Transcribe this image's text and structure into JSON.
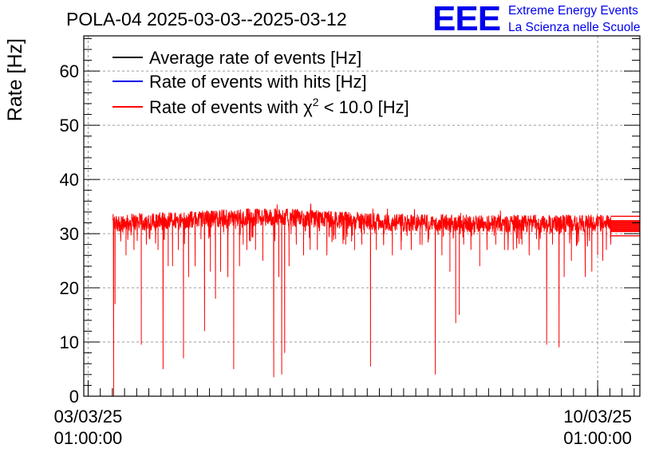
{
  "chart_data": {
    "type": "line",
    "title": "POLA-04 2025-03-03--2025-03-12",
    "ylabel": "Rate [Hz]",
    "xlabel": "",
    "ylim": [
      0,
      66.5
    ],
    "y_ticks": [
      0,
      10,
      20,
      30,
      40,
      50,
      60
    ],
    "x_range_days": [
      -0.06,
      7.58
    ],
    "x_ticks": [
      {
        "day": 0,
        "date": "03/03/25",
        "time": "01:00:00"
      },
      {
        "day": 7,
        "date": "10/03/25",
        "time": "01:00:00"
      }
    ],
    "grid": true,
    "legend_position": "top-left",
    "series": [
      {
        "name": "Average rate of events [Hz]",
        "color": "#000000",
        "legend_label": "Average rate of events [Hz]"
      },
      {
        "name": "Rate of events with hits [Hz]",
        "color": "#0000ee",
        "legend_label": "Rate of events with hits [Hz]"
      },
      {
        "name": "Rate of events with chi2 < 10.0 [Hz]",
        "color": "#ff0000",
        "legend_prefix": "Rate of events with ",
        "legend_symbol": "χ",
        "legend_sup": "2",
        "legend_suffix": " < 10.0 [Hz]",
        "start_day": 0.34,
        "end_day": 7.58,
        "band_low": 30.0,
        "band_high": 33.5,
        "dips": [
          [
            0.35,
            0
          ],
          [
            0.37,
            17
          ],
          [
            0.52,
            26
          ],
          [
            0.63,
            27
          ],
          [
            0.73,
            9.5
          ],
          [
            0.8,
            28
          ],
          [
            0.96,
            27
          ],
          [
            1.03,
            5
          ],
          [
            1.1,
            24
          ],
          [
            1.16,
            24
          ],
          [
            1.24,
            27
          ],
          [
            1.31,
            7
          ],
          [
            1.38,
            22
          ],
          [
            1.47,
            24
          ],
          [
            1.55,
            29
          ],
          [
            1.6,
            12
          ],
          [
            1.68,
            23
          ],
          [
            1.75,
            18
          ],
          [
            1.82,
            23
          ],
          [
            1.92,
            22
          ],
          [
            2.0,
            5
          ],
          [
            2.08,
            24
          ],
          [
            2.13,
            28
          ],
          [
            2.18,
            27
          ],
          [
            2.3,
            27
          ],
          [
            2.4,
            25
          ],
          [
            2.55,
            3.5
          ],
          [
            2.62,
            22
          ],
          [
            2.66,
            4
          ],
          [
            2.7,
            8
          ],
          [
            2.76,
            24
          ],
          [
            2.86,
            28
          ],
          [
            2.96,
            26
          ],
          [
            3.05,
            27
          ],
          [
            3.15,
            27
          ],
          [
            3.28,
            26
          ],
          [
            3.4,
            29
          ],
          [
            3.54,
            28
          ],
          [
            3.66,
            27
          ],
          [
            3.76,
            28
          ],
          [
            3.88,
            5.5
          ],
          [
            3.96,
            27
          ],
          [
            4.06,
            28
          ],
          [
            4.18,
            26
          ],
          [
            4.3,
            27
          ],
          [
            4.44,
            27
          ],
          [
            4.56,
            28
          ],
          [
            4.68,
            29
          ],
          [
            4.77,
            4
          ],
          [
            4.86,
            26
          ],
          [
            4.97,
            23
          ],
          [
            5.05,
            13.5
          ],
          [
            5.1,
            15
          ],
          [
            5.16,
            28
          ],
          [
            5.26,
            27
          ],
          [
            5.38,
            24
          ],
          [
            5.48,
            27
          ],
          [
            5.6,
            28
          ],
          [
            5.72,
            27
          ],
          [
            5.84,
            27
          ],
          [
            5.96,
            28
          ],
          [
            6.06,
            26
          ],
          [
            6.16,
            29
          ],
          [
            6.3,
            9.5
          ],
          [
            6.38,
            28
          ],
          [
            6.47,
            9
          ],
          [
            6.54,
            22
          ],
          [
            6.64,
            25
          ],
          [
            6.72,
            28
          ],
          [
            6.83,
            22
          ],
          [
            6.92,
            23
          ],
          [
            7.0,
            26
          ],
          [
            7.07,
            25
          ],
          [
            7.12,
            27
          ],
          [
            7.18,
            28
          ]
        ]
      }
    ],
    "flat_segment": {
      "start_day": 7.18,
      "end_day": 7.58,
      "levels": [
        29.6,
        30.4,
        30.8,
        31.2,
        31.6,
        32.0,
        32.4,
        33.2
      ]
    }
  },
  "logo": {
    "text": "EEE",
    "line1": "Extreme Energy Events",
    "line2": "La Scienza nelle Scuole",
    "color": "#0000ee"
  }
}
